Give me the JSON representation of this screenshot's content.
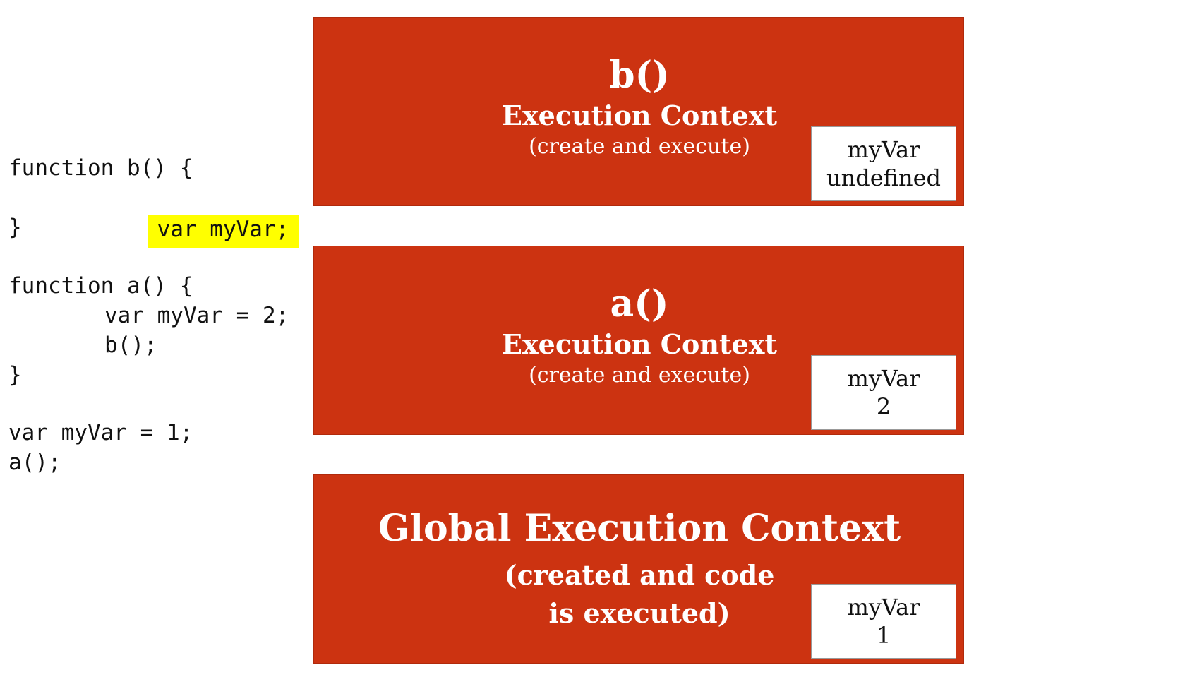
{
  "code": {
    "lines": [
      "function b() {",
      "var myVar;",
      "}",
      "function a() {",
      "var myVar = 2;",
      "b();",
      "}",
      "var myVar = 1;",
      "a();"
    ]
  },
  "contexts": [
    {
      "title": "b()",
      "subtitle": "Execution Context",
      "note": "(create and execute)",
      "variable": {
        "name": "myVar",
        "value": "undefined"
      }
    },
    {
      "title": "a()",
      "subtitle": "Execution Context",
      "note": "(create and execute)",
      "variable": {
        "name": "myVar",
        "value": "2"
      }
    },
    {
      "title": "Global Execution Context",
      "subtitle": "(created and code",
      "note": "is executed)",
      "variable": {
        "name": "myVar",
        "value": "1"
      }
    }
  ],
  "colors": {
    "context_fill": "#cc3311",
    "highlight": "#ffff00"
  }
}
